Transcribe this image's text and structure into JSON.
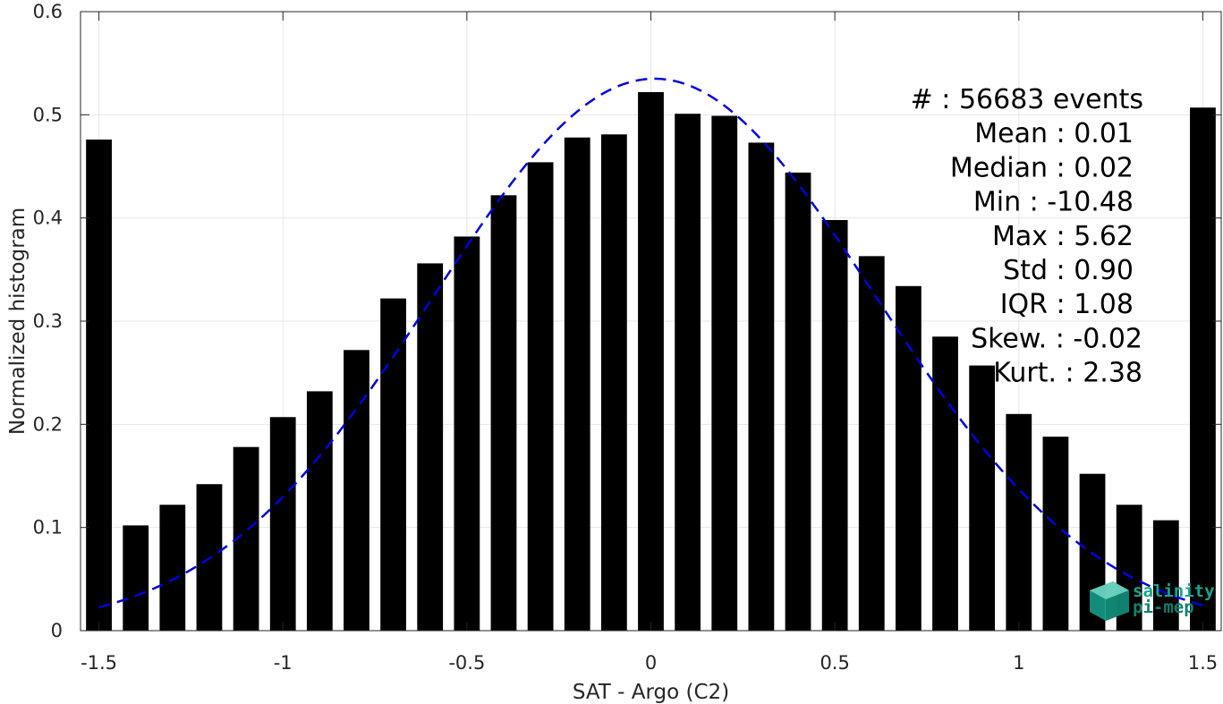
{
  "chart_data": {
    "type": "bar",
    "xlabel": "SAT - Argo (C2)",
    "ylabel": "Normalized histogram",
    "xlim": [
      -1.55,
      1.55
    ],
    "ylim": [
      0,
      0.6
    ],
    "grid": true,
    "xticks": [
      -1.5,
      -1,
      -0.5,
      0,
      0.5,
      1,
      1.5
    ],
    "xtick_labels": [
      "-1.5",
      "-1",
      "-0.5",
      "0",
      "0.5",
      "1",
      "1.5"
    ],
    "yticks": [
      0,
      0.1,
      0.2,
      0.3,
      0.4,
      0.5,
      0.6
    ],
    "ytick_labels": [
      "0",
      "0.1",
      "0.2",
      "0.3",
      "0.4",
      "0.5",
      "0.6"
    ],
    "bar_color": "#000000",
    "bar_width": 0.07,
    "bins": [
      -1.5,
      -1.4,
      -1.3,
      -1.2,
      -1.1,
      -1.0,
      -0.9,
      -0.8,
      -0.7,
      -0.6,
      -0.5,
      -0.4,
      -0.3,
      -0.2,
      -0.1,
      0.0,
      0.1,
      0.2,
      0.3,
      0.4,
      0.5,
      0.6,
      0.7,
      0.8,
      0.9,
      1.0,
      1.1,
      1.2,
      1.3,
      1.4,
      1.5
    ],
    "values": [
      0.476,
      0.102,
      0.122,
      0.142,
      0.178,
      0.207,
      0.232,
      0.272,
      0.322,
      0.356,
      0.382,
      0.422,
      0.454,
      0.478,
      0.481,
      0.522,
      0.501,
      0.499,
      0.473,
      0.444,
      0.398,
      0.363,
      0.334,
      0.285,
      0.257,
      0.21,
      0.188,
      0.152,
      0.122,
      0.107,
      0.507
    ],
    "fit_curve": {
      "type": "gaussian",
      "style": "dashed",
      "color": "#0000dd",
      "mean": 0.01,
      "amplitude": 0.535,
      "sigma": 0.6,
      "x_range": [
        -1.5,
        1.5
      ]
    },
    "annotation_lines": [
      "#  : 56683 events",
      "Mean : 0.01",
      "Median : 0.02",
      "Min : -10.48",
      "Max : 5.62",
      "Std : 0.90",
      "IQR : 1.08",
      "Skew. : -0.02",
      "Kurt. : 2.38"
    ]
  },
  "logo": {
    "line1": "salinity",
    "line2": "pi-mep",
    "color": "#17a58f"
  }
}
